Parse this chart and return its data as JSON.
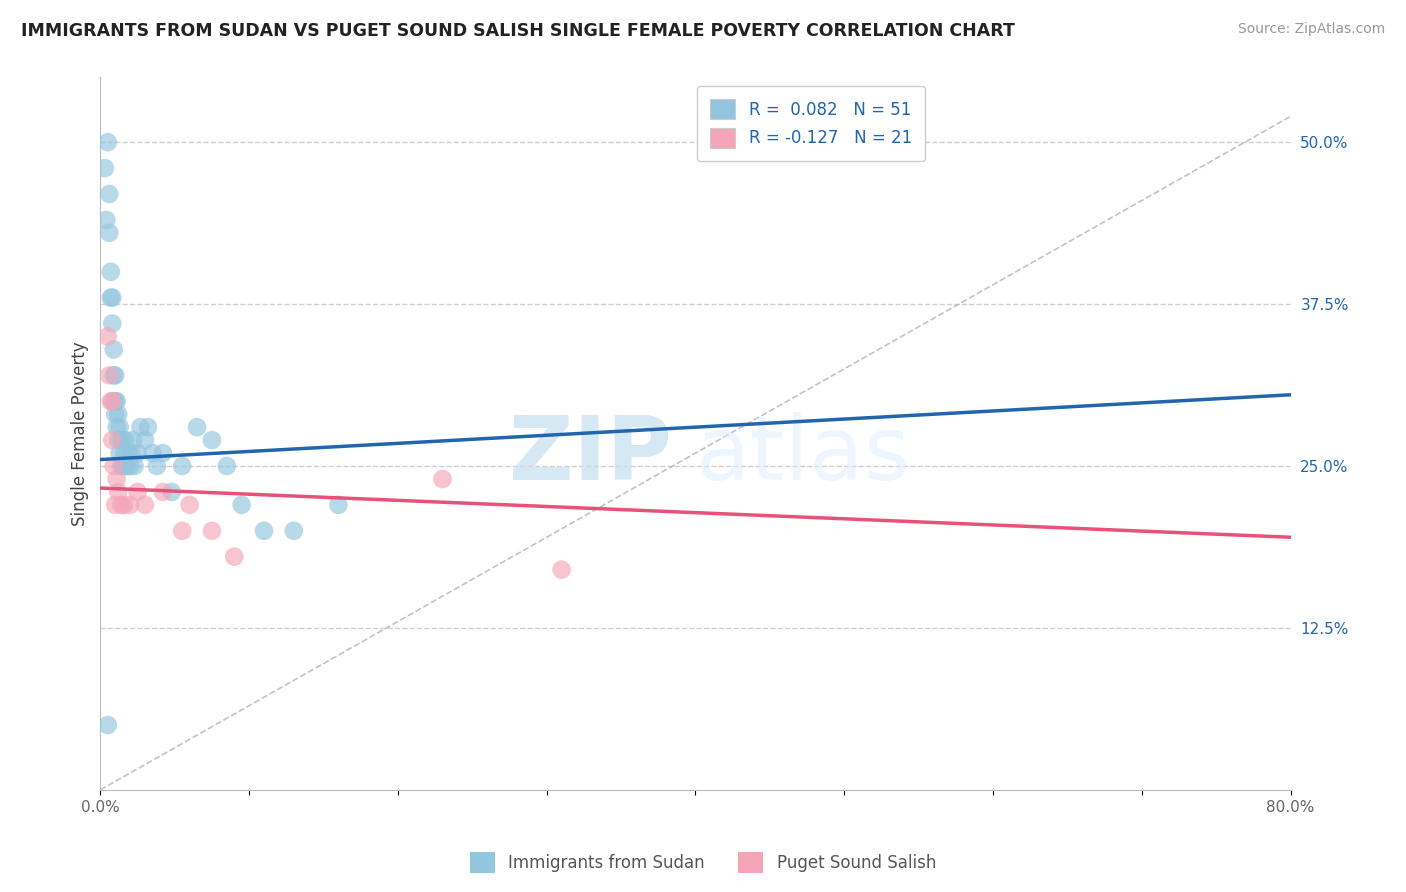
{
  "title": "IMMIGRANTS FROM SUDAN VS PUGET SOUND SALISH SINGLE FEMALE POVERTY CORRELATION CHART",
  "source": "Source: ZipAtlas.com",
  "ylabel": "Single Female Poverty",
  "xlim": [
    0.0,
    0.8
  ],
  "ylim": [
    0.0,
    0.55
  ],
  "yticks_right": [
    0.125,
    0.25,
    0.375,
    0.5
  ],
  "ytick_right_labels": [
    "12.5%",
    "25.0%",
    "37.5%",
    "50.0%"
  ],
  "blue_color": "#92c5de",
  "pink_color": "#f4a6b8",
  "blue_line_color": "#2166ac",
  "pink_line_color": "#e8517a",
  "ref_line_color": "#aaaaaa",
  "grid_color": "#d0d0d0",
  "watermark_zip": "ZIP",
  "watermark_atlas": "atlas",
  "blue_scatter_x": [
    0.003,
    0.004,
    0.005,
    0.006,
    0.006,
    0.007,
    0.007,
    0.008,
    0.008,
    0.009,
    0.009,
    0.009,
    0.01,
    0.01,
    0.01,
    0.011,
    0.011,
    0.012,
    0.012,
    0.013,
    0.013,
    0.014,
    0.014,
    0.015,
    0.015,
    0.016,
    0.016,
    0.017,
    0.018,
    0.019,
    0.02,
    0.021,
    0.022,
    0.023,
    0.025,
    0.027,
    0.03,
    0.032,
    0.035,
    0.038,
    0.042,
    0.048,
    0.055,
    0.065,
    0.075,
    0.085,
    0.095,
    0.11,
    0.13,
    0.16,
    0.005
  ],
  "blue_scatter_y": [
    0.48,
    0.44,
    0.5,
    0.46,
    0.43,
    0.4,
    0.38,
    0.38,
    0.36,
    0.34,
    0.32,
    0.3,
    0.32,
    0.3,
    0.29,
    0.3,
    0.28,
    0.29,
    0.27,
    0.28,
    0.26,
    0.27,
    0.25,
    0.27,
    0.25,
    0.26,
    0.25,
    0.27,
    0.25,
    0.26,
    0.25,
    0.26,
    0.27,
    0.25,
    0.26,
    0.28,
    0.27,
    0.28,
    0.26,
    0.25,
    0.26,
    0.23,
    0.25,
    0.28,
    0.27,
    0.25,
    0.22,
    0.2,
    0.2,
    0.22,
    0.05
  ],
  "pink_scatter_x": [
    0.005,
    0.006,
    0.007,
    0.008,
    0.008,
    0.009,
    0.01,
    0.011,
    0.012,
    0.014,
    0.016,
    0.02,
    0.025,
    0.03,
    0.042,
    0.055,
    0.06,
    0.075,
    0.09,
    0.23,
    0.31
  ],
  "pink_scatter_y": [
    0.35,
    0.32,
    0.3,
    0.3,
    0.27,
    0.25,
    0.22,
    0.24,
    0.23,
    0.22,
    0.22,
    0.22,
    0.23,
    0.22,
    0.23,
    0.2,
    0.22,
    0.2,
    0.18,
    0.24,
    0.17
  ],
  "blue_R": 0.082,
  "blue_N": 51,
  "pink_R": -0.127,
  "pink_N": 21
}
